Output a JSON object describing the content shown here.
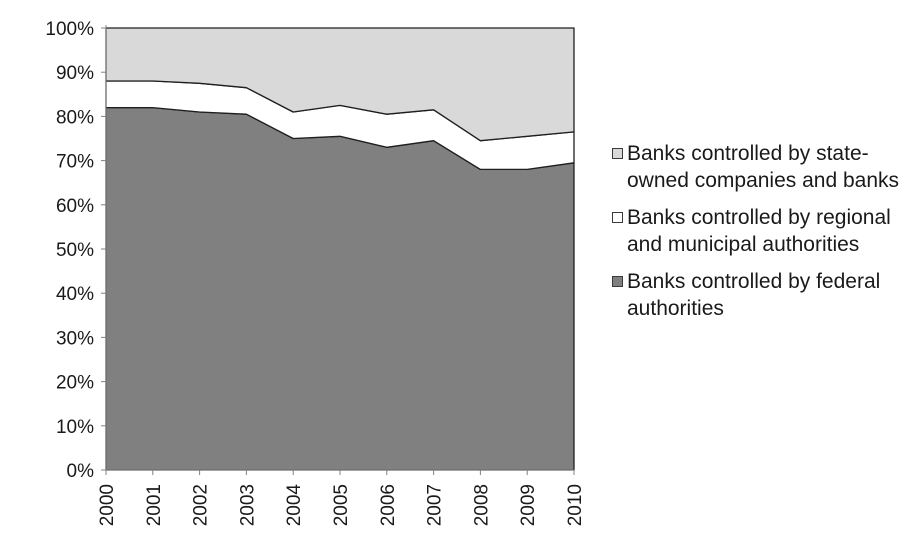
{
  "chart_data": {
    "type": "area",
    "stacked": true,
    "percent": true,
    "x": [
      "2000",
      "2001",
      "2002",
      "2003",
      "2004",
      "2005",
      "2006",
      "2007",
      "2008",
      "2009",
      "2010"
    ],
    "ylim": [
      0,
      100
    ],
    "yticks": [
      "0%",
      "10%",
      "20%",
      "30%",
      "40%",
      "50%",
      "60%",
      "70%",
      "80%",
      "90%",
      "100%"
    ],
    "series": [
      {
        "name": "Banks controlled by federal authorities",
        "color": "#808080",
        "values": [
          82,
          82,
          81,
          80.5,
          75,
          75.5,
          73,
          74.5,
          68,
          68,
          69.5
        ]
      },
      {
        "name": "Banks controlled by regional and municipal authorities",
        "color": "#ffffff",
        "values": [
          6,
          6,
          6.5,
          6,
          6,
          7,
          7.5,
          7,
          6.5,
          7.5,
          7
        ]
      },
      {
        "name": "Banks controlled by state-owned companies and banks",
        "color": "#d9d9d9",
        "values": [
          12,
          12,
          12.5,
          13.5,
          19,
          17.5,
          19.5,
          18.5,
          25.5,
          24.5,
          23.5
        ]
      }
    ],
    "legend_order": [
      2,
      1,
      0
    ],
    "legend_position": "right",
    "grid": false
  }
}
